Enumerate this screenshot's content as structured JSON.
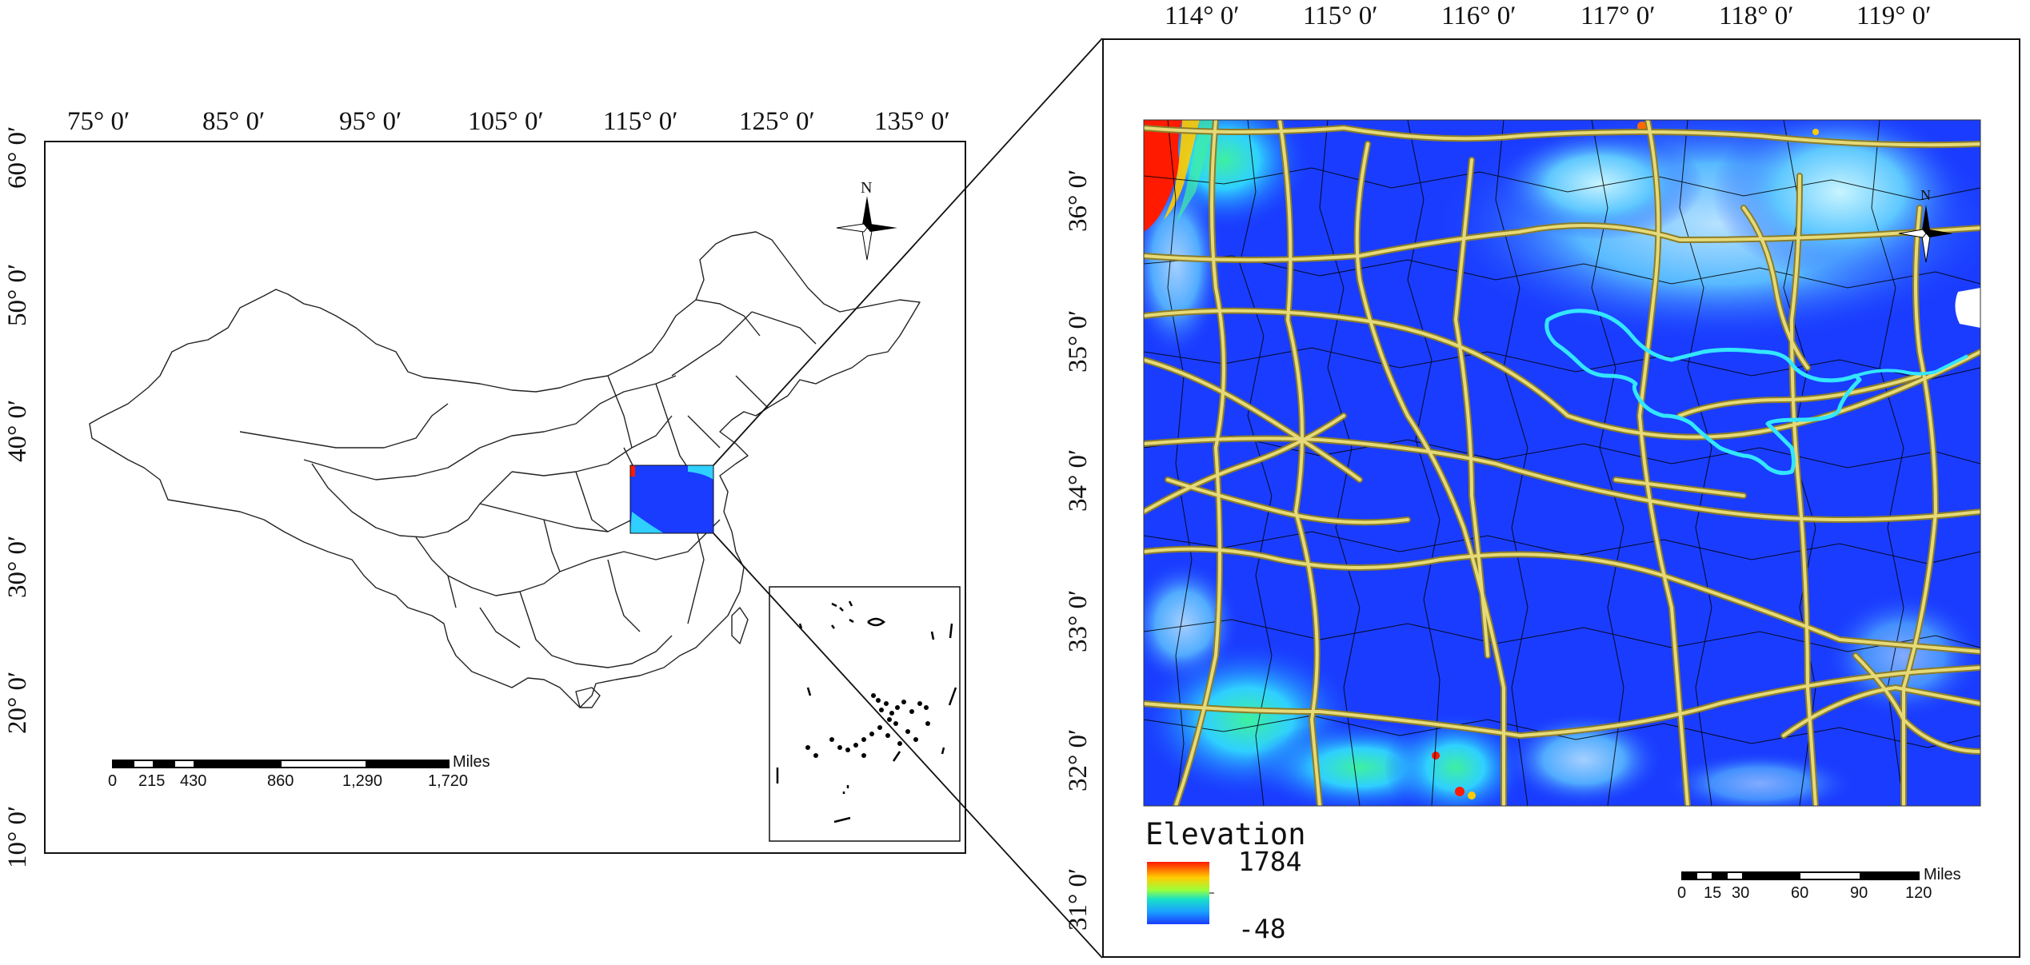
{
  "left_map": {
    "lon_ticks": [
      "75° 0′",
      "85° 0′",
      "95° 0′",
      "105° 0′",
      "115° 0′",
      "125° 0′",
      "135° 0′"
    ],
    "lat_ticks": [
      "60° 0′",
      "50° 0′",
      "40° 0′",
      "30° 0′",
      "20° 0′",
      "10° 0′"
    ],
    "north_label": "N",
    "scale_unit": "Miles",
    "scale_labels": [
      "0",
      "215",
      "430",
      "860",
      "1,290",
      "1,720"
    ]
  },
  "right_map": {
    "lon_ticks": [
      "114° 0′",
      "115° 0′",
      "116° 0′",
      "117° 0′",
      "118° 0′",
      "119° 0′"
    ],
    "lat_ticks": [
      "36° 0′",
      "35° 0′",
      "34° 0′",
      "33° 0′",
      "32° 0′",
      "31° 0′"
    ],
    "north_label": "N",
    "legend": {
      "title": "Elevation",
      "max": "1784",
      "min": "-48"
    },
    "scale_unit": "Miles",
    "scale_labels": [
      "0",
      "15",
      "30",
      "60",
      "90",
      "120"
    ]
  },
  "colors": {
    "elevation_low": "#1a3cff",
    "elevation_mid": "#2fd0ff",
    "elevation_high": "#ff1a00",
    "road": "#cdbf5a",
    "river": "#33e6ff"
  },
  "icons": [
    "north-arrow-icon"
  ]
}
